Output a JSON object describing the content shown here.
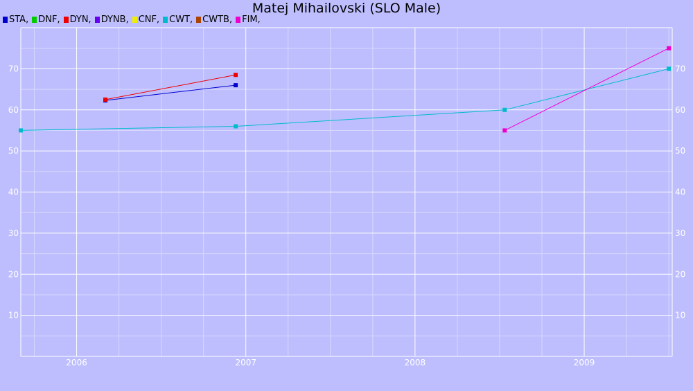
{
  "chart_data": {
    "type": "line",
    "title": "Matej Mihailovski (SLO Male)",
    "xlabel": "",
    "ylabel": "",
    "xlim": [
      2005.67,
      2009.52
    ],
    "ylim": [
      0,
      80
    ],
    "x_ticks": [
      "2006",
      "2007",
      "2008",
      "2009"
    ],
    "y_ticks": [
      10,
      20,
      30,
      40,
      50,
      60,
      70
    ],
    "grid": true,
    "legend_position": "top-left",
    "legend": [
      {
        "name": "STA",
        "color": "#0000cc"
      },
      {
        "name": "DNF",
        "color": "#00cc00"
      },
      {
        "name": "DYN",
        "color": "#ee0000"
      },
      {
        "name": "DYNB",
        "color": "#6600ee"
      },
      {
        "name": "CNF",
        "color": "#eeee00"
      },
      {
        "name": "CWT",
        "color": "#00bbcc"
      },
      {
        "name": "CWTB",
        "color": "#aa4400"
      },
      {
        "name": "FIM",
        "color": "#ee00cc"
      }
    ],
    "series": [
      {
        "name": "STA",
        "color": "#0000cc",
        "points": [
          [
            2006.17,
            62.3
          ],
          [
            2006.94,
            66
          ]
        ]
      },
      {
        "name": "DYN",
        "color": "#ee0000",
        "points": [
          [
            2006.17,
            62.5
          ],
          [
            2006.94,
            68.5
          ]
        ]
      },
      {
        "name": "CWT",
        "color": "#00bbcc",
        "points": [
          [
            2005.67,
            55
          ],
          [
            2006.94,
            56
          ],
          [
            2008.53,
            60
          ],
          [
            2009.5,
            70
          ]
        ]
      },
      {
        "name": "FIM",
        "color": "#ee00cc",
        "points": [
          [
            2008.53,
            55
          ],
          [
            2009.5,
            75
          ]
        ]
      }
    ]
  }
}
